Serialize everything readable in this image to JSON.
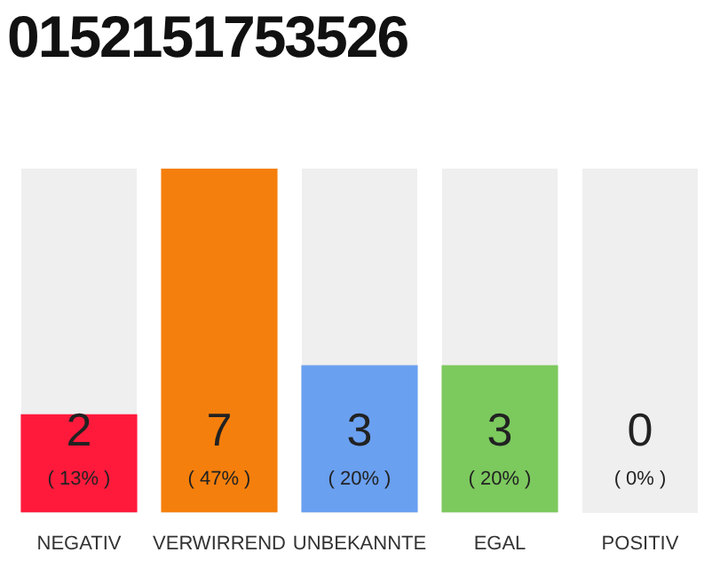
{
  "chart_data": {
    "type": "bar",
    "title": "0152151753526",
    "categories": [
      "NEGATIV",
      "VERWIRREND",
      "UNBEKANNTE",
      "EGAL",
      "POSITIV"
    ],
    "values": [
      2,
      7,
      3,
      3,
      0
    ],
    "colors": [
      "#ff1a3c",
      "#f57f0c",
      "#6aa0f0",
      "#7cc95e",
      "#cccccc"
    ],
    "ylim": [
      0,
      7
    ],
    "grid": false,
    "legend": false,
    "tick_labels": "x",
    "value_labels": [
      "2\n( 13% )",
      "7\n( 47% )",
      "3\n( 20% )",
      "3\n( 20% )",
      "0\n( 0% )"
    ]
  }
}
